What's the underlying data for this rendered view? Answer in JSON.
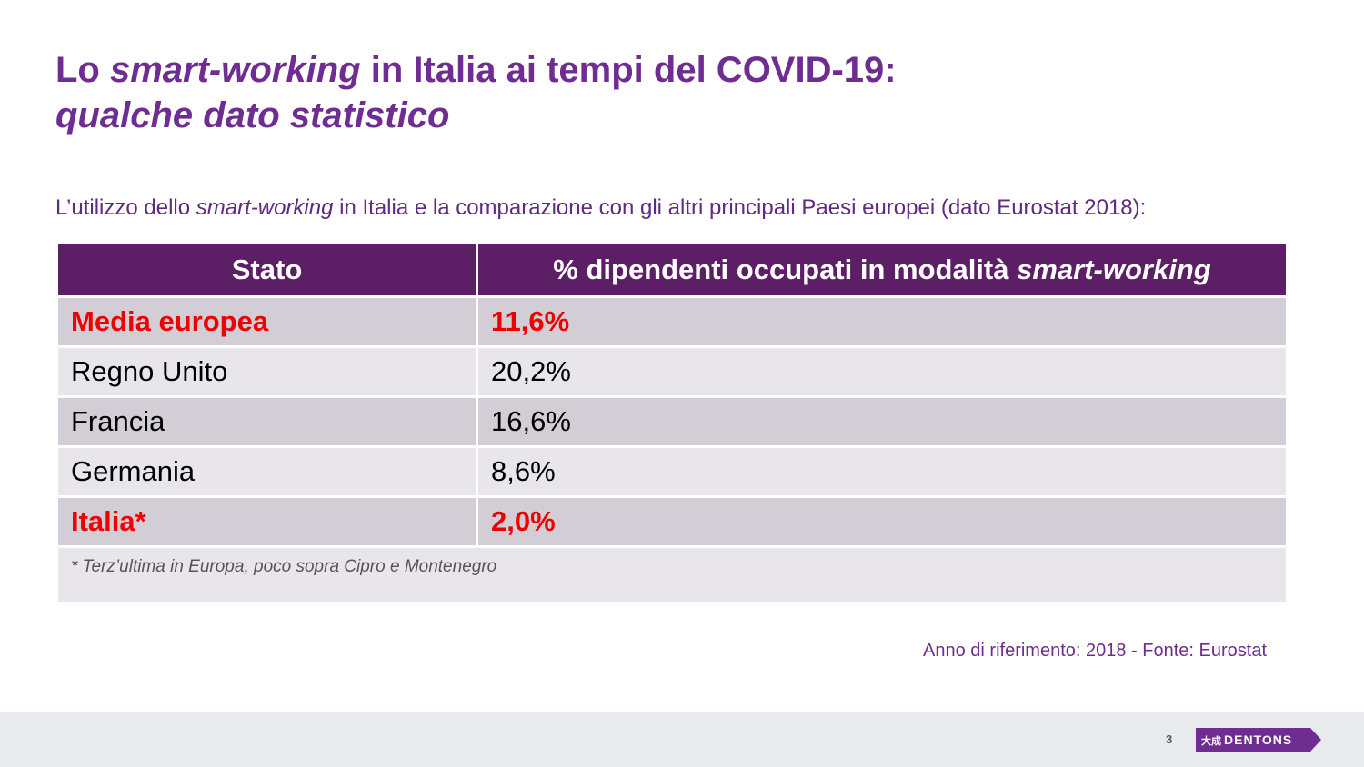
{
  "title": {
    "part1": "Lo ",
    "part2_italic": "smart-working",
    "part3": " in Italia ai tempi del COVID-19:",
    "line2_italic": "qualche dato statistico"
  },
  "intro": {
    "part1": "L’utilizzo dello ",
    "part2_italic": "smart-working",
    "part3": " in Italia e la comparazione con gli altri principali Paesi europei (dato Eurostat 2018):"
  },
  "table": {
    "headers": {
      "col1": "Stato",
      "col2_text": "% dipendenti occupati in modalità ",
      "col2_italic": "smart-working"
    },
    "rows": [
      {
        "stato": "Media europea",
        "percent": "11,6%"
      },
      {
        "stato": "Regno Unito",
        "percent": "20,2%"
      },
      {
        "stato": "Francia",
        "percent": "16,6%"
      },
      {
        "stato": "Germania",
        "percent": "8,6%"
      },
      {
        "stato": "Italia*",
        "percent": "2,0%"
      }
    ],
    "note": "* Terz’ultima in Europa, poco sopra Cipro e Montenegro"
  },
  "source": "Anno di riferimento: 2018 - Fonte: Eurostat",
  "footer": {
    "page_number": "3",
    "logo_text": "DENTONS",
    "logo_chinese": "大成"
  },
  "colors": {
    "brand_purple": "#6f2c91",
    "header_purple": "#5c1f66",
    "highlight_red": "#ee0000",
    "row_dark": "#d3ced6",
    "row_light": "#e8e6ea"
  }
}
